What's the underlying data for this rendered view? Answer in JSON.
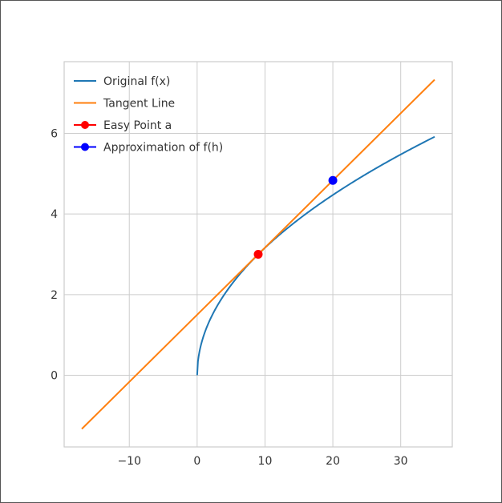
{
  "chart_data": {
    "type": "line",
    "title": "",
    "xlabel": "",
    "ylabel": "",
    "xlim": [
      -19.6,
      37.6
    ],
    "ylim": [
      -1.78,
      7.78
    ],
    "grid": true,
    "legend_position": "top-left",
    "x_ticks": [
      -10,
      0,
      10,
      20,
      30
    ],
    "y_ticks": [
      0,
      2,
      4,
      6
    ],
    "series": [
      {
        "name": "Original f(x)",
        "kind": "line",
        "color": "#1f77b4",
        "function": "sqrt(x)",
        "x_range": [
          0,
          35
        ],
        "samples": [
          [
            0,
            0
          ],
          [
            1,
            1
          ],
          [
            4,
            2
          ],
          [
            9,
            3
          ],
          [
            16,
            4
          ],
          [
            20,
            4.47
          ],
          [
            25,
            5
          ],
          [
            30,
            5.48
          ],
          [
            35,
            5.92
          ]
        ]
      },
      {
        "name": "Tangent Line",
        "kind": "line",
        "color": "#ff7f0e",
        "function": "3 + (x - 9) / 6",
        "points": [
          [
            -17,
            -1.333
          ],
          [
            35,
            7.333
          ]
        ]
      },
      {
        "name": "Easy Point a",
        "kind": "point",
        "color": "#ff0000",
        "points": [
          [
            9,
            3
          ]
        ]
      },
      {
        "name": "Approximation of f(h)",
        "kind": "point",
        "color": "#0000ff",
        "points": [
          [
            20,
            4.833
          ]
        ]
      }
    ]
  }
}
